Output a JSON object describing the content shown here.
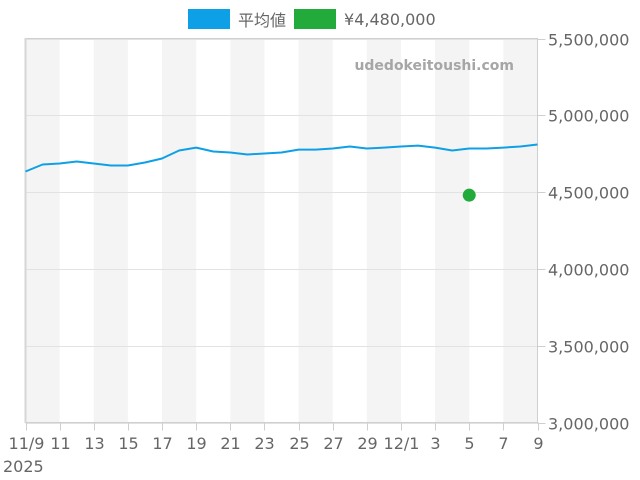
{
  "legend": {
    "items": [
      {
        "label": "平均値",
        "color": "#0ea0e6"
      },
      {
        "label": "¥4,480,000",
        "color": "#22aa3a"
      }
    ]
  },
  "watermark": "udedokeitoushi.com",
  "chart_data": {
    "type": "line",
    "title": "",
    "xlabel": "",
    "ylabel": "",
    "ylim": [
      3000000,
      5500000
    ],
    "y_ticks": [
      "3,000,000",
      "3,500,000",
      "4,000,000",
      "4,500,000",
      "5,000,000",
      "5,500,000"
    ],
    "y_tick_values": [
      3000000,
      3500000,
      4000000,
      4500000,
      5000000,
      5500000
    ],
    "x_ticks": [
      "11/9",
      "11",
      "13",
      "15",
      "17",
      "19",
      "21",
      "23",
      "25",
      "27",
      "29",
      "12/1",
      "3",
      "5",
      "7",
      "9"
    ],
    "x_tick_days": [
      0,
      2,
      4,
      6,
      8,
      10,
      12,
      14,
      16,
      18,
      20,
      22,
      24,
      26,
      28,
      30
    ],
    "x_year_label": "2025",
    "x_range_days": [
      0,
      30
    ],
    "grid": true,
    "legend_position": "top",
    "alternating_bands": true,
    "series": [
      {
        "name": "平均値",
        "color": "#0ea0e6",
        "x": [
          "11/9",
          "11/10",
          "11/11",
          "11/12",
          "11/13",
          "11/14",
          "11/15",
          "11/16",
          "11/17",
          "11/18",
          "11/19",
          "11/20",
          "11/21",
          "11/22",
          "11/23",
          "11/24",
          "11/25",
          "11/26",
          "11/27",
          "11/28",
          "11/29",
          "11/30",
          "12/1",
          "12/2",
          "12/3",
          "12/4",
          "12/5",
          "12/6",
          "12/7",
          "12/8",
          "12/9"
        ],
        "values": [
          4634000,
          4680000,
          4686000,
          4699000,
          4686000,
          4673000,
          4673000,
          4693000,
          4719000,
          4771000,
          4790000,
          4764000,
          4758000,
          4745000,
          4751000,
          4758000,
          4777000,
          4777000,
          4784000,
          4797000,
          4784000,
          4790000,
          4797000,
          4803000,
          4790000,
          4771000,
          4784000,
          4784000,
          4790000,
          4797000,
          4810000
        ]
      },
      {
        "name": "¥4,480,000",
        "color": "#22aa3a",
        "type": "scatter",
        "x": [
          "12/5"
        ],
        "x_days": [
          26
        ],
        "values": [
          4480000
        ]
      }
    ]
  }
}
